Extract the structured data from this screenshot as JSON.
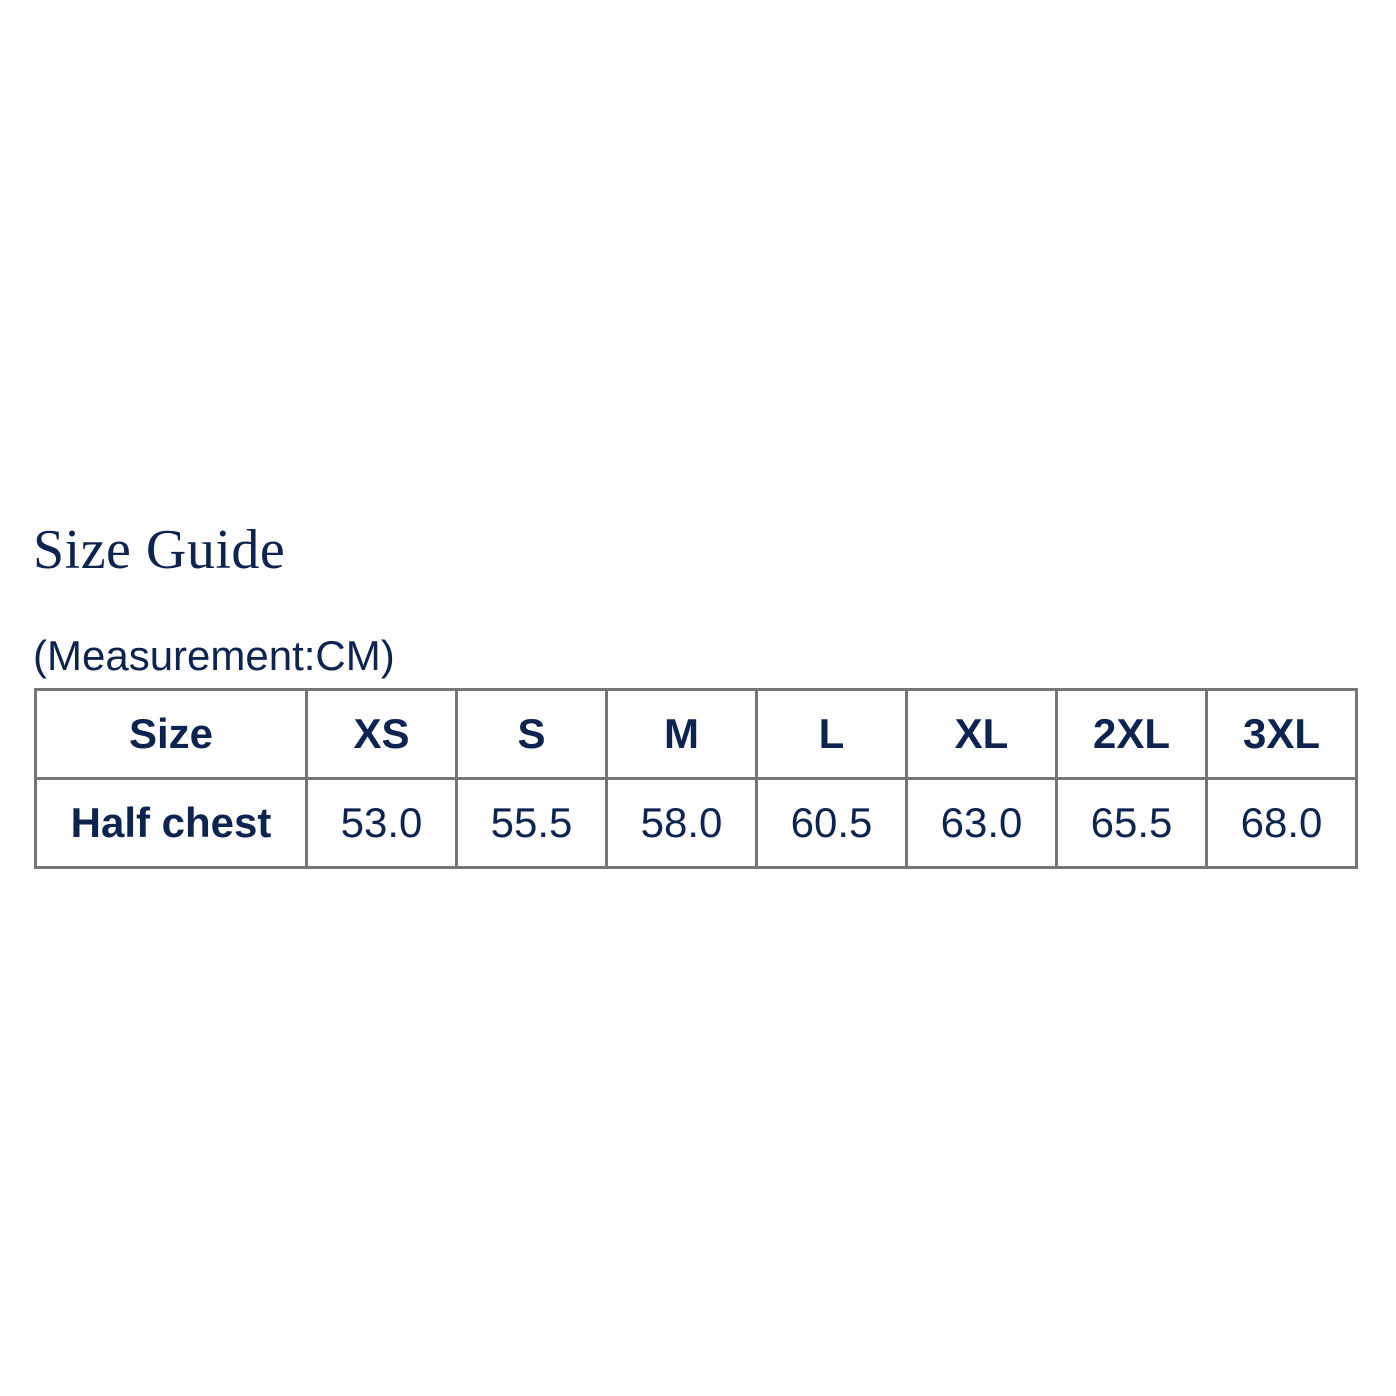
{
  "title": "Size Guide",
  "subtitle": "(Measurement:CM)",
  "colors": {
    "text": "#0d2350",
    "border": "#767676"
  },
  "table": {
    "header_label": "Size",
    "sizes": [
      "XS",
      "S",
      "M",
      "L",
      "XL",
      "2XL",
      "3XL"
    ],
    "row_label": "Half chest",
    "values": [
      "53.0",
      "55.5",
      "58.0",
      "60.5",
      "63.0",
      "65.5",
      "68.0"
    ]
  }
}
